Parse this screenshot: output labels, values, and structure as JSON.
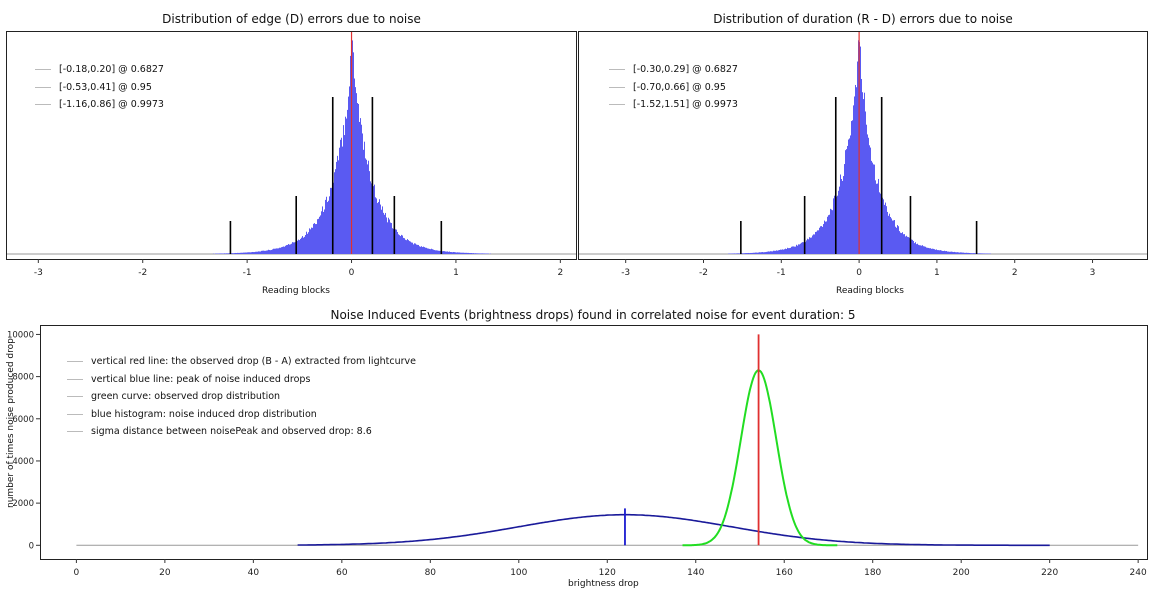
{
  "colors": {
    "histogram": "#5a5af2",
    "observed_line": "#e03030",
    "noise_peak_line": "#1a1ad0",
    "observed_curve": "#22dd22",
    "noise_curve": "#1a1a9a",
    "baseline": "#999999",
    "ci_bars": "#000000"
  },
  "chart_data": [
    {
      "type": "bar",
      "title": "Distribution of edge (D) errors due to noise",
      "xlabel": "Reading blocks",
      "ylabel": "",
      "xlim": [
        -3.3,
        2.15
      ],
      "xticks": [
        "-3",
        "-2",
        "-1",
        "0",
        "1",
        "2"
      ],
      "grid": false,
      "legend_position": "top-left",
      "histogram": {
        "center": 0.01,
        "scale": 0.29,
        "shape": "peaked"
      },
      "observed_value": 0.0,
      "confidence_intervals": [
        {
          "label": "[-0.18,0.20] @ 0.6827",
          "low": -0.18,
          "high": 0.2,
          "level": 0.6827
        },
        {
          "label": "[-0.53,0.41] @ 0.95",
          "low": -0.53,
          "high": 0.41,
          "level": 0.95
        },
        {
          "label": "[-1.16,0.86] @ 0.9973",
          "low": -1.16,
          "high": 0.86,
          "level": 0.9973
        }
      ]
    },
    {
      "type": "bar",
      "title": "Distribution of duration (R - D) errors due to noise",
      "xlabel": "Reading blocks",
      "ylabel": "",
      "xlim": [
        -3.6,
        3.7
      ],
      "xticks": [
        "-3",
        "-2",
        "-1",
        "0",
        "1",
        "2",
        "3"
      ],
      "grid": false,
      "legend_position": "top-left",
      "histogram": {
        "center": 0.0,
        "scale": 0.37,
        "shape": "peaked"
      },
      "observed_value": 0.0,
      "confidence_intervals": [
        {
          "label": "[-0.30,0.29] @ 0.6827",
          "low": -0.3,
          "high": 0.29,
          "level": 0.6827
        },
        {
          "label": "[-0.70,0.66] @ 0.95",
          "low": -0.7,
          "high": 0.66,
          "level": 0.95
        },
        {
          "label": "[-1.52,1.51] @ 0.9973",
          "low": -1.52,
          "high": 1.51,
          "level": 0.9973
        }
      ]
    },
    {
      "type": "line",
      "title": "Noise Induced Events (brightness drops) found in correlated noise for event duration: 5",
      "xlabel": "brightness drop",
      "ylabel": "number of times noise produced drop",
      "xlim": [
        -8,
        242
      ],
      "ylim": [
        -650,
        10400
      ],
      "xticks": [
        "0",
        "20",
        "40",
        "60",
        "80",
        "100",
        "120",
        "140",
        "160",
        "180",
        "200",
        "220",
        "240"
      ],
      "yticks": [
        "0",
        "2000",
        "4000",
        "6000",
        "8000",
        "10000"
      ],
      "grid": false,
      "legend_position": "top-left",
      "legend": [
        "vertical red line: the observed drop (B - A) extracted from lightcurve",
        "vertical blue line: peak of noise induced drops",
        "green curve: observed drop distribution",
        "blue histogram: noise induced drop distribution",
        "sigma distance between noisePeak and observed drop: 8.6"
      ],
      "baseline_range": [
        0,
        240
      ],
      "noise_distribution": {
        "peak_x": 124,
        "peak_y": 1450,
        "sigma": 24,
        "x_range": [
          50,
          220
        ]
      },
      "observed_distribution": {
        "peak_x": 154.2,
        "peak_y": 8300,
        "sigma": 4.0,
        "x_range": [
          137,
          172
        ]
      },
      "observed_drop": {
        "x": 154.2,
        "y_top": 10000
      },
      "noise_peak": {
        "x": 124,
        "y_top": 1750
      }
    }
  ]
}
